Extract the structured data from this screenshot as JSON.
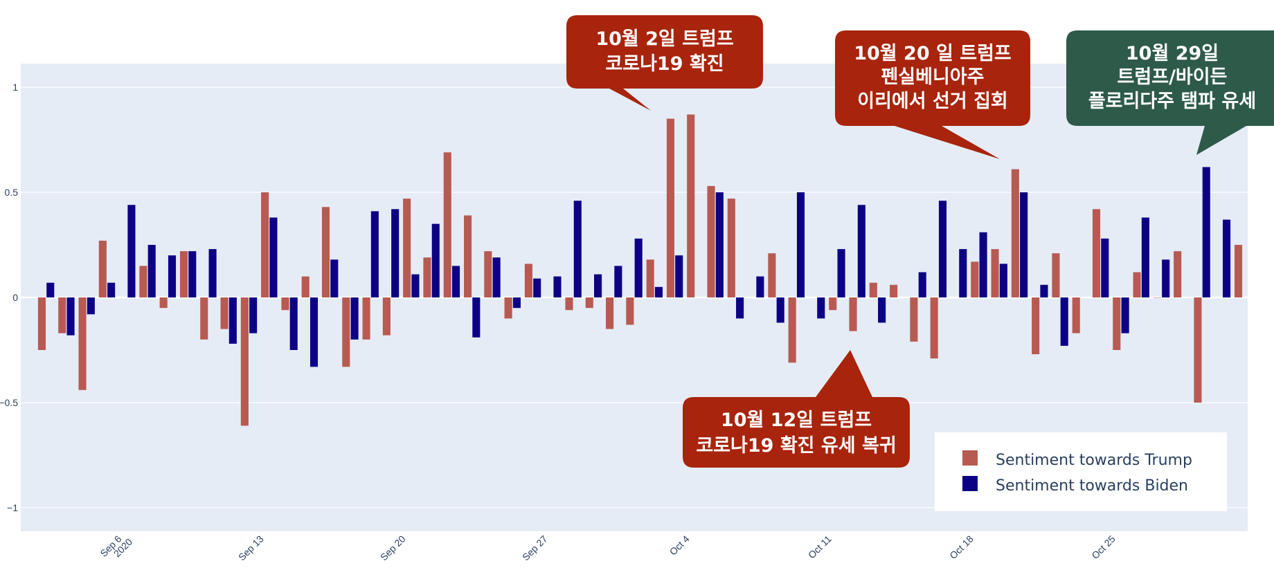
{
  "chart_data": {
    "type": "bar",
    "title": "",
    "xlabel": "",
    "ylabel": "",
    "ylim": [
      -1.1,
      1.1
    ],
    "yticks": [
      1,
      0.5,
      0,
      -0.5,
      -1
    ],
    "ytick_labels": [
      "1",
      "0.5",
      "0",
      "−0.5",
      "−1"
    ],
    "xticks": [
      {
        "date": "2020-09-06",
        "label": "Sep 6",
        "sub": "2020"
      },
      {
        "date": "2020-09-13",
        "label": "Sep 13",
        "sub": ""
      },
      {
        "date": "2020-09-20",
        "label": "Sep 20",
        "sub": ""
      },
      {
        "date": "2020-09-27",
        "label": "Sep 27",
        "sub": ""
      },
      {
        "date": "2020-10-04",
        "label": "Oct 4",
        "sub": ""
      },
      {
        "date": "2020-10-11",
        "label": "Oct 11",
        "sub": ""
      },
      {
        "date": "2020-10-18",
        "label": "Oct 18",
        "sub": ""
      },
      {
        "date": "2020-10-25",
        "label": "Oct 25",
        "sub": ""
      }
    ],
    "x_range": [
      "2020-09-01",
      "2020-10-31"
    ],
    "grid": true,
    "legend_position": "bottom-right",
    "series": [
      {
        "name": "Sentiment towards Trump",
        "color": "#b85a52",
        "points": [
          [
            "2020-09-02",
            -0.25
          ],
          [
            "2020-09-03",
            -0.17
          ],
          [
            "2020-09-04",
            -0.44
          ],
          [
            "2020-09-05",
            0.27
          ],
          [
            "2020-09-07",
            0.15
          ],
          [
            "2020-09-08",
            -0.05
          ],
          [
            "2020-09-09",
            0.22
          ],
          [
            "2020-09-10",
            -0.2
          ],
          [
            "2020-09-11",
            -0.15
          ],
          [
            "2020-09-12",
            -0.61
          ],
          [
            "2020-09-13",
            0.5
          ],
          [
            "2020-09-14",
            -0.06
          ],
          [
            "2020-09-15",
            0.1
          ],
          [
            "2020-09-16",
            0.43
          ],
          [
            "2020-09-17",
            -0.33
          ],
          [
            "2020-09-18",
            -0.2
          ],
          [
            "2020-09-19",
            -0.18
          ],
          [
            "2020-09-20",
            0.47
          ],
          [
            "2020-09-21",
            0.19
          ],
          [
            "2020-09-22",
            0.69
          ],
          [
            "2020-09-23",
            0.39
          ],
          [
            "2020-09-24",
            0.22
          ],
          [
            "2020-09-25",
            -0.1
          ],
          [
            "2020-09-26",
            0.16
          ],
          [
            "2020-09-28",
            -0.06
          ],
          [
            "2020-09-29",
            -0.05
          ],
          [
            "2020-09-30",
            -0.15
          ],
          [
            "2020-10-01",
            -0.13
          ],
          [
            "2020-10-02",
            0.18
          ],
          [
            "2020-10-03",
            0.85
          ],
          [
            "2020-10-04",
            0.87
          ],
          [
            "2020-10-05",
            0.53
          ],
          [
            "2020-10-06",
            0.47
          ],
          [
            "2020-10-08",
            0.21
          ],
          [
            "2020-10-09",
            -0.31
          ],
          [
            "2020-10-11",
            -0.06
          ],
          [
            "2020-10-12",
            -0.16
          ],
          [
            "2020-10-13",
            0.07
          ],
          [
            "2020-10-14",
            0.06
          ],
          [
            "2020-10-15",
            -0.21
          ],
          [
            "2020-10-16",
            -0.29
          ],
          [
            "2020-10-18",
            0.17
          ],
          [
            "2020-10-19",
            0.23
          ],
          [
            "2020-10-20",
            0.61
          ],
          [
            "2020-10-21",
            -0.27
          ],
          [
            "2020-10-22",
            0.21
          ],
          [
            "2020-10-23",
            -0.17
          ],
          [
            "2020-10-24",
            0.42
          ],
          [
            "2020-10-25",
            -0.25
          ],
          [
            "2020-10-26",
            0.12
          ],
          [
            "2020-10-27",
            0.0
          ],
          [
            "2020-10-28",
            0.22
          ],
          [
            "2020-10-29",
            -0.5
          ],
          [
            "2020-10-31",
            0.25
          ]
        ]
      },
      {
        "name": "Sentiment towards Biden",
        "color": "#0c0085",
        "points": [
          [
            "2020-09-02",
            0.07
          ],
          [
            "2020-09-03",
            -0.18
          ],
          [
            "2020-09-04",
            -0.08
          ],
          [
            "2020-09-05",
            0.07
          ],
          [
            "2020-09-06",
            0.44
          ],
          [
            "2020-09-07",
            0.25
          ],
          [
            "2020-09-08",
            0.2
          ],
          [
            "2020-09-09",
            0.22
          ],
          [
            "2020-09-10",
            0.23
          ],
          [
            "2020-09-11",
            -0.22
          ],
          [
            "2020-09-12",
            -0.17
          ],
          [
            "2020-09-13",
            0.38
          ],
          [
            "2020-09-14",
            -0.25
          ],
          [
            "2020-09-15",
            -0.33
          ],
          [
            "2020-09-16",
            0.18
          ],
          [
            "2020-09-17",
            -0.2
          ],
          [
            "2020-09-18",
            0.41
          ],
          [
            "2020-09-19",
            0.42
          ],
          [
            "2020-09-20",
            0.11
          ],
          [
            "2020-09-21",
            0.35
          ],
          [
            "2020-09-22",
            0.15
          ],
          [
            "2020-09-23",
            -0.19
          ],
          [
            "2020-09-24",
            0.19
          ],
          [
            "2020-09-25",
            -0.05
          ],
          [
            "2020-09-26",
            0.09
          ],
          [
            "2020-09-27",
            0.1
          ],
          [
            "2020-09-28",
            0.46
          ],
          [
            "2020-09-29",
            0.11
          ],
          [
            "2020-09-30",
            0.15
          ],
          [
            "2020-10-01",
            0.28
          ],
          [
            "2020-10-02",
            0.05
          ],
          [
            "2020-10-03",
            0.2
          ],
          [
            "2020-10-05",
            0.5
          ],
          [
            "2020-10-06",
            -0.1
          ],
          [
            "2020-10-07",
            0.1
          ],
          [
            "2020-10-08",
            -0.12
          ],
          [
            "2020-10-09",
            0.5
          ],
          [
            "2020-10-10",
            -0.1
          ],
          [
            "2020-10-11",
            0.23
          ],
          [
            "2020-10-12",
            0.44
          ],
          [
            "2020-10-13",
            -0.12
          ],
          [
            "2020-10-15",
            0.12
          ],
          [
            "2020-10-16",
            0.46
          ],
          [
            "2020-10-17",
            0.23
          ],
          [
            "2020-10-18",
            0.31
          ],
          [
            "2020-10-19",
            0.16
          ],
          [
            "2020-10-20",
            0.5
          ],
          [
            "2020-10-21",
            0.06
          ],
          [
            "2020-10-22",
            -0.23
          ],
          [
            "2020-10-24",
            0.28
          ],
          [
            "2020-10-25",
            -0.17
          ],
          [
            "2020-10-26",
            0.38
          ],
          [
            "2020-10-27",
            0.18
          ],
          [
            "2020-10-29",
            0.62
          ],
          [
            "2020-10-30",
            0.37
          ]
        ]
      }
    ],
    "annotations": [
      {
        "id": "oct2",
        "lines": [
          "10월  2일 트럼프",
          "코로나19 확진"
        ],
        "color": "#a8240c"
      },
      {
        "id": "oct20",
        "lines": [
          "10월 20 일 트럼프",
          "펜실베니아주",
          "이리에서 선거 집회"
        ],
        "color": "#a8240c"
      },
      {
        "id": "oct29",
        "lines": [
          "10월 29일",
          "트럼프/바이든",
          "플로리다주 탬파 유세"
        ],
        "color": "#2e5a4a"
      },
      {
        "id": "oct12",
        "lines": [
          "10월  12일 트럼프",
          "코로나19 확진 유세 복귀"
        ],
        "color": "#a8240c"
      }
    ]
  }
}
